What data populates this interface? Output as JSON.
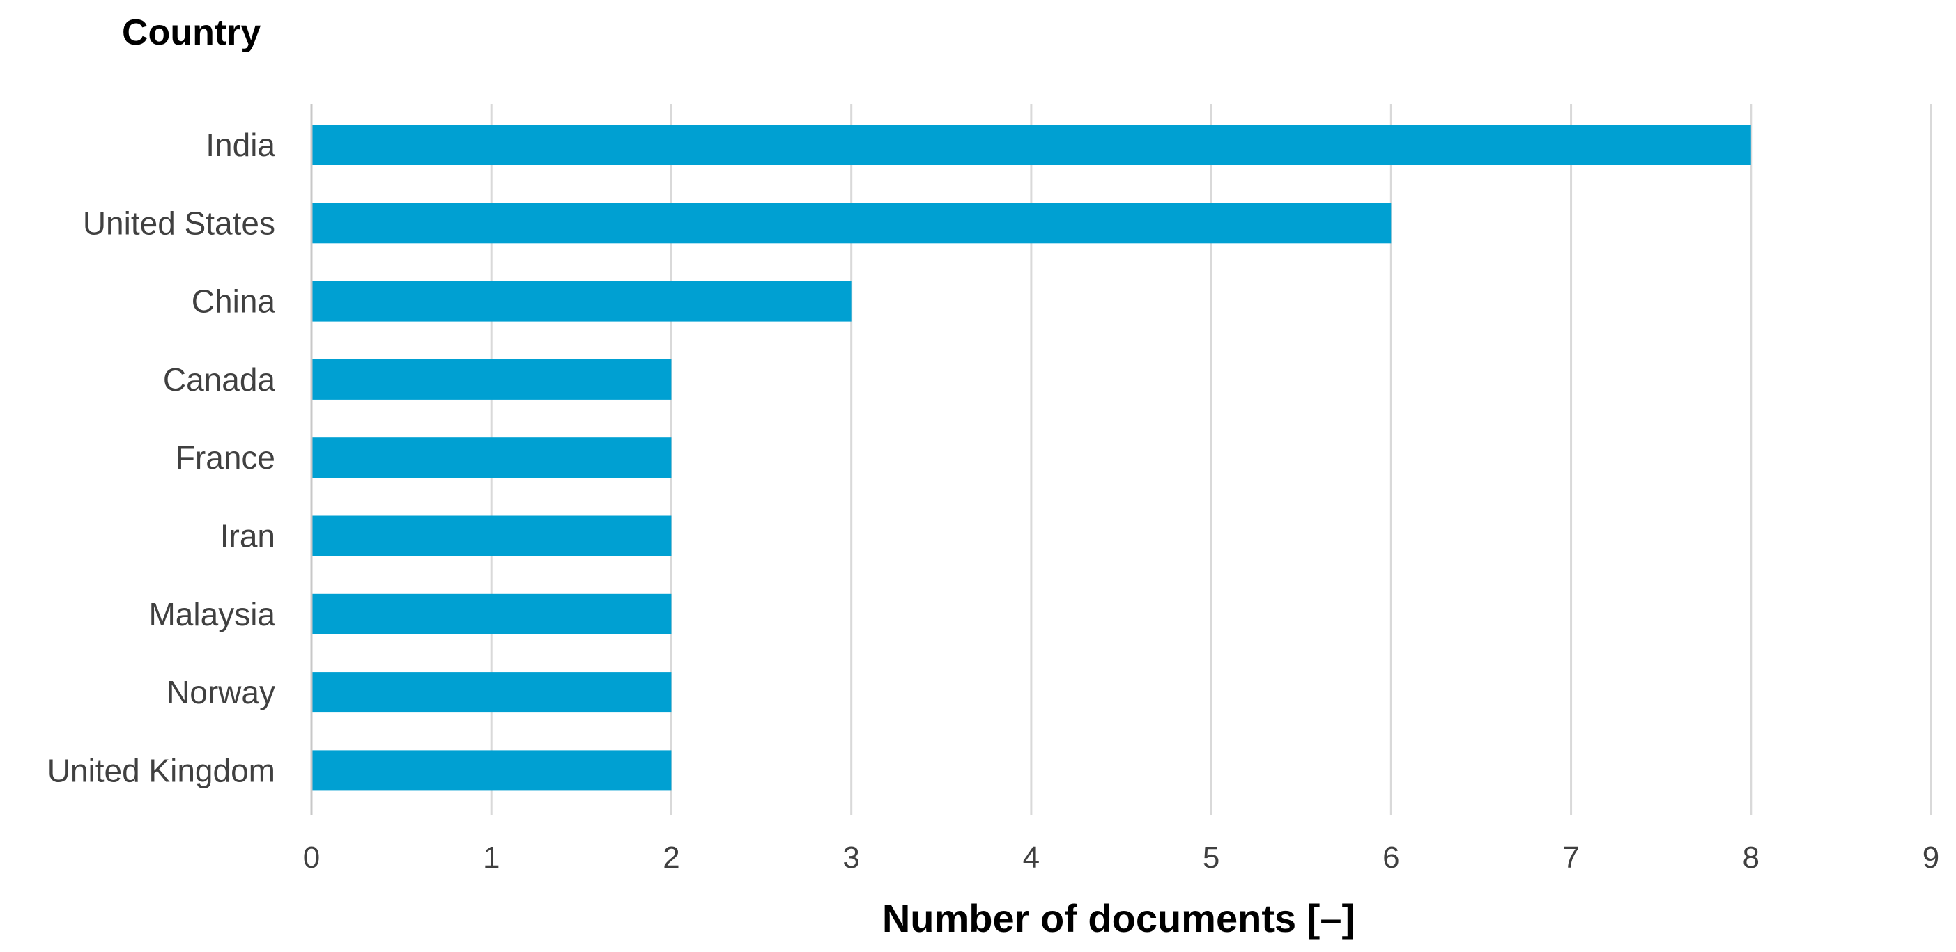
{
  "chart_data": {
    "type": "bar",
    "orientation": "horizontal",
    "categories": [
      "India",
      "United States",
      "China",
      "Canada",
      "France",
      "Iran",
      "Malaysia",
      "Norway",
      "United Kingdom"
    ],
    "values": [
      8,
      6,
      3,
      2,
      2,
      2,
      2,
      2,
      2
    ],
    "title": "",
    "ylabel": "Country",
    "xlabel": "Number of documents [–]",
    "xlim": [
      0,
      9
    ],
    "xticks": [
      "0",
      "1",
      "2",
      "3",
      "4",
      "5",
      "6",
      "7",
      "8",
      "9"
    ],
    "grid": "vertical",
    "legend": "none",
    "bar_color": "#00A0D2"
  }
}
